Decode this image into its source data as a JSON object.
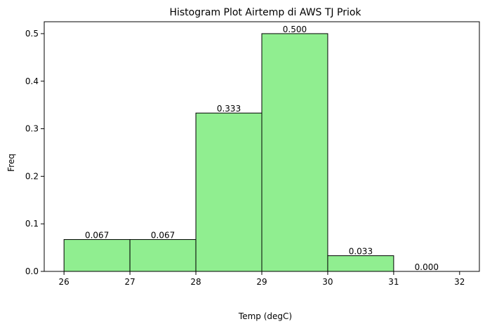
{
  "chart_data": {
    "type": "bar",
    "title": "Histogram Plot Airtemp di AWS TJ Priok",
    "xlabel": "Temp (degC)",
    "ylabel": "Freq",
    "bins": [
      {
        "start": 26,
        "end": 27,
        "value": 0.067,
        "label": "0.067"
      },
      {
        "start": 27,
        "end": 28,
        "value": 0.067,
        "label": "0.067"
      },
      {
        "start": 28,
        "end": 29,
        "value": 0.333,
        "label": "0.333"
      },
      {
        "start": 29,
        "end": 30,
        "value": 0.5,
        "label": "0.500"
      },
      {
        "start": 30,
        "end": 31,
        "value": 0.033,
        "label": "0.033"
      },
      {
        "start": 31,
        "end": 32,
        "value": 0.0,
        "label": "0.000"
      }
    ],
    "xlim": [
      25.7,
      32.3
    ],
    "ylim": [
      0,
      0.525
    ],
    "xticks": [
      26,
      27,
      28,
      29,
      30,
      31,
      32
    ],
    "xtick_labels": [
      "26",
      "27",
      "28",
      "29",
      "30",
      "31",
      "32"
    ],
    "yticks": [
      0.0,
      0.1,
      0.2,
      0.3,
      0.4,
      0.5
    ],
    "ytick_labels": [
      "0.0",
      "0.1",
      "0.2",
      "0.3",
      "0.4",
      "0.5"
    ],
    "grid": false,
    "bar_color": "#90EE90",
    "edge_color": "#000000"
  }
}
